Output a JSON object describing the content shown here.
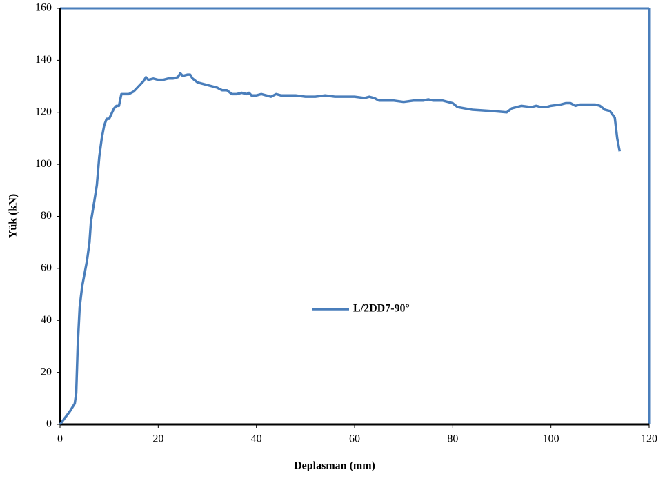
{
  "chart_data": {
    "type": "line",
    "xlabel": "Deplasman (mm)",
    "ylabel": "Yük (kN)",
    "xlim": [
      0,
      120
    ],
    "xticks": [
      0,
      20,
      40,
      60,
      80,
      100,
      120
    ],
    "ylim": [
      0,
      160
    ],
    "yticks": [
      0,
      20,
      40,
      60,
      80,
      100,
      120,
      140,
      160
    ],
    "legend": "center",
    "series": [
      {
        "name": "L/2DD7-90°",
        "color": "#4a7ebb",
        "x": [
          0,
          1,
          2,
          3,
          3.3,
          3.6,
          4,
          4.5,
          5,
          5.5,
          6,
          6.3,
          7,
          7.5,
          8,
          8.5,
          9,
          9.5,
          10,
          10.5,
          11,
          11.5,
          12,
          12.5,
          13,
          14,
          15,
          16,
          17,
          17.5,
          18,
          19,
          20,
          21,
          22,
          23,
          24,
          24.5,
          25,
          26,
          26.5,
          27,
          28,
          29,
          30,
          31,
          32,
          33,
          34,
          35,
          36,
          37,
          38,
          38.5,
          39,
          40,
          41,
          42,
          43,
          44,
          45,
          46,
          48,
          50,
          52,
          54,
          56,
          58,
          60,
          62,
          63,
          64,
          65,
          66,
          68,
          70,
          72,
          74,
          75,
          76,
          78,
          79,
          80,
          81,
          84,
          88,
          91,
          92,
          93,
          94,
          96,
          97,
          98,
          99,
          100,
          102,
          103,
          104,
          105,
          106,
          107,
          108,
          109,
          110,
          111,
          112,
          113,
          113.5,
          114
        ],
        "values": [
          0,
          2.5,
          5,
          8,
          12,
          30,
          45,
          53,
          58,
          63,
          70,
          78,
          86,
          92,
          103,
          110,
          115,
          117.5,
          117.5,
          119.5,
          121.5,
          122.5,
          122.5,
          127,
          127,
          127,
          128,
          130,
          132,
          133.5,
          132.5,
          133,
          132.5,
          132.5,
          133,
          133,
          133.5,
          135,
          134,
          134.5,
          134.5,
          133,
          131.5,
          131,
          130.5,
          130,
          129.5,
          128.5,
          128.5,
          127,
          127,
          127.5,
          127,
          127.5,
          126.5,
          126.5,
          127,
          126.5,
          126,
          127,
          126.5,
          126.5,
          126.5,
          126,
          126,
          126.5,
          126,
          126,
          126,
          125.5,
          126,
          125.5,
          124.5,
          124.5,
          124.5,
          124,
          124.5,
          124.5,
          125,
          124.5,
          124.5,
          124,
          123.5,
          122,
          121,
          120.5,
          120,
          121.5,
          122,
          122.5,
          122,
          122.5,
          122,
          122,
          122.5,
          123,
          123.5,
          123.5,
          122.5,
          123,
          123,
          123,
          123,
          122.5,
          121,
          120.5,
          118,
          110,
          105
        ]
      }
    ]
  }
}
